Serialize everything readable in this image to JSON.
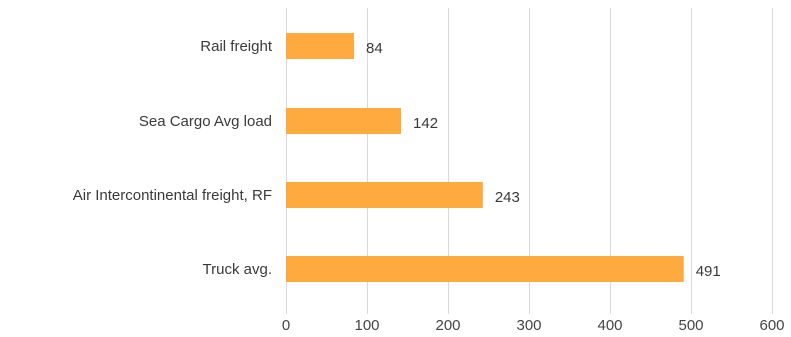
{
  "chart_data": {
    "type": "bar",
    "orientation": "horizontal",
    "categories": [
      "Rail freight",
      "Sea Cargo Avg load",
      "Air Intercontinental freight, RF",
      "Truck avg."
    ],
    "values": [
      84,
      142,
      243,
      491
    ],
    "title": "",
    "xlabel": "",
    "ylabel": "",
    "xlim": [
      0,
      600
    ],
    "xticks": [
      0,
      100,
      200,
      300,
      400,
      500,
      600
    ],
    "grid": "vertical",
    "bar_color": "#FFAA3E",
    "data_labels": true,
    "legend": "none"
  },
  "colors": {
    "grid": "#d9d9d9",
    "text": "#3a3a3a",
    "background": "#ffffff"
  }
}
